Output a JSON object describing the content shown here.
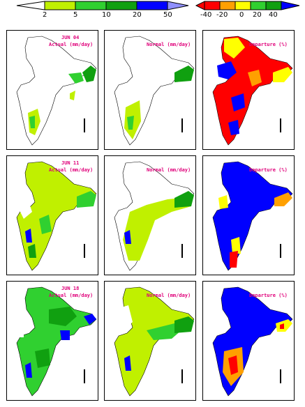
{
  "legends": {
    "rainfall": {
      "ticks": [
        "2",
        "5",
        "10",
        "20",
        "50"
      ],
      "colors": [
        "#ffffff",
        "#c0f000",
        "#30d030",
        "#10a010",
        "#0000ff"
      ]
    },
    "departure": {
      "ticks": [
        "-40",
        "-20",
        "0",
        "20",
        "40"
      ],
      "colors": [
        "#ff0000",
        "#ffa000",
        "#ffff00",
        "#30d030",
        "#10a010",
        "#0000ff"
      ]
    }
  },
  "rows": [
    {
      "date": "JUN 04",
      "actual_label": "Actual (mm/day)",
      "normal_label": "Normal (mm/day)",
      "departure_label": "Departure (%)"
    },
    {
      "date": "JUN 11",
      "actual_label": "Actual (mm/day)",
      "normal_label": "Normal (mm/day)",
      "departure_label": "Departure (%)"
    },
    {
      "date": "JUN 18",
      "actual_label": "Actual (mm/day)",
      "normal_label": "Normal (mm/day)",
      "departure_label": "Departure (%)"
    }
  ]
}
